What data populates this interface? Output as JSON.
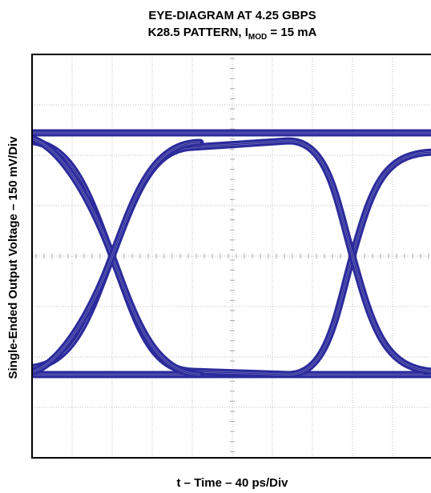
{
  "chart_data": {
    "type": "eye",
    "title": [
      "EYE-DIAGRAM AT 4.25 GBPS",
      "K28.5 PATTERN, I",
      "MOD",
      " = 15 mA"
    ],
    "xlabel": "t – Time – 40 ps/Div",
    "ylabel": "Single-Ended Output Voltage – 150 mV/Div"
  }
}
